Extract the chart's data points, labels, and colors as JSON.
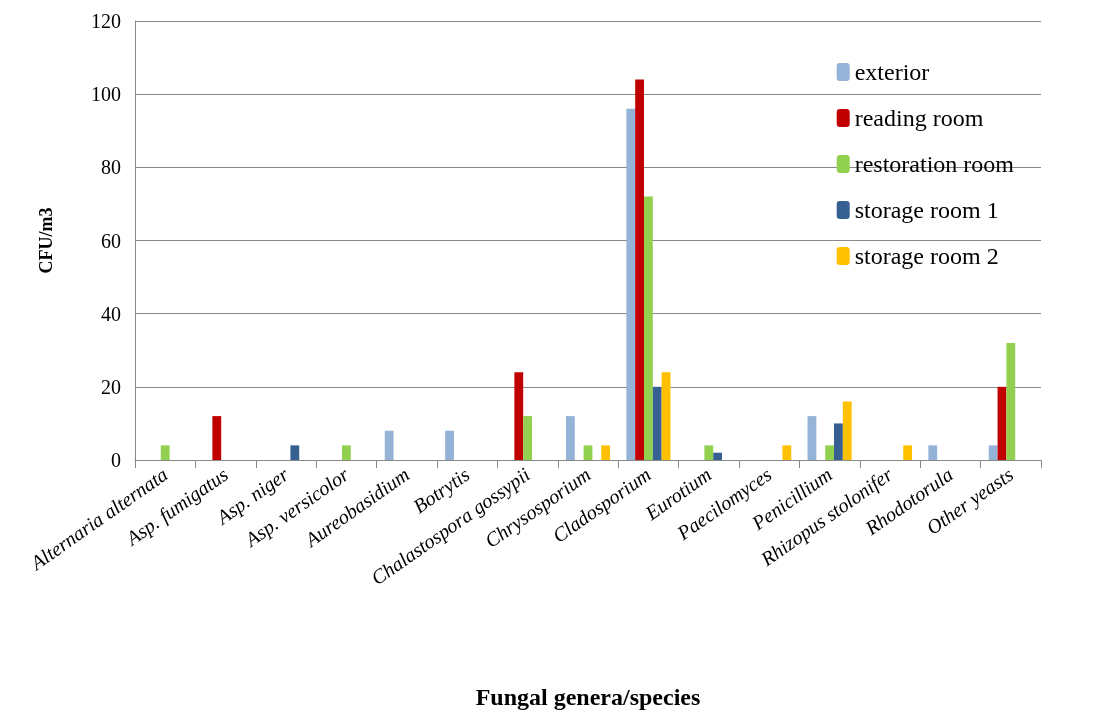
{
  "chart_data": {
    "type": "bar",
    "xlabel": "Fungal genera/species",
    "ylabel": "CFU/m3",
    "categories": [
      "Alternaria alternata",
      "Asp. fumigatus",
      "Asp. niger",
      "Asp. versicolor",
      "Aureobasidium",
      "Botrytis",
      "Chalastospora gossypii",
      "Chrysosporium",
      "Cladosporium",
      "Eurotium",
      "Paecilomyces",
      "Penicillium",
      "Rhizopus stolonifer",
      "Rhodotorula",
      "Other yeasts"
    ],
    "series": [
      {
        "name": "exterior",
        "color": "#95b3d7",
        "values": [
          0,
          0,
          0,
          0,
          8,
          8,
          0,
          12,
          96,
          0,
          0,
          12,
          0,
          4,
          4
        ]
      },
      {
        "name": "reading room",
        "color": "#c00000",
        "values": [
          0,
          12,
          0,
          0,
          0,
          0,
          24,
          0,
          104,
          0,
          0,
          0,
          0,
          0,
          20
        ]
      },
      {
        "name": "restoration room",
        "color": "#92d050",
        "values": [
          4,
          0,
          0,
          4,
          0,
          0,
          12,
          4,
          72,
          4,
          0,
          4,
          0,
          0,
          32
        ]
      },
      {
        "name": "storage room 1",
        "color": "#366092",
        "values": [
          0,
          0,
          4,
          0,
          0,
          0,
          0,
          0,
          20,
          2,
          0,
          10,
          0,
          0,
          0
        ]
      },
      {
        "name": "storage room 2",
        "color": "#ffc000",
        "values": [
          0,
          0,
          0,
          0,
          0,
          0,
          0,
          4,
          24,
          0,
          4,
          16,
          4,
          0,
          0
        ]
      }
    ],
    "ylim": [
      0,
      120
    ],
    "yticks": [
      0,
      20,
      40,
      60,
      80,
      100,
      120
    ],
    "grid": "y",
    "legend": "top right"
  }
}
